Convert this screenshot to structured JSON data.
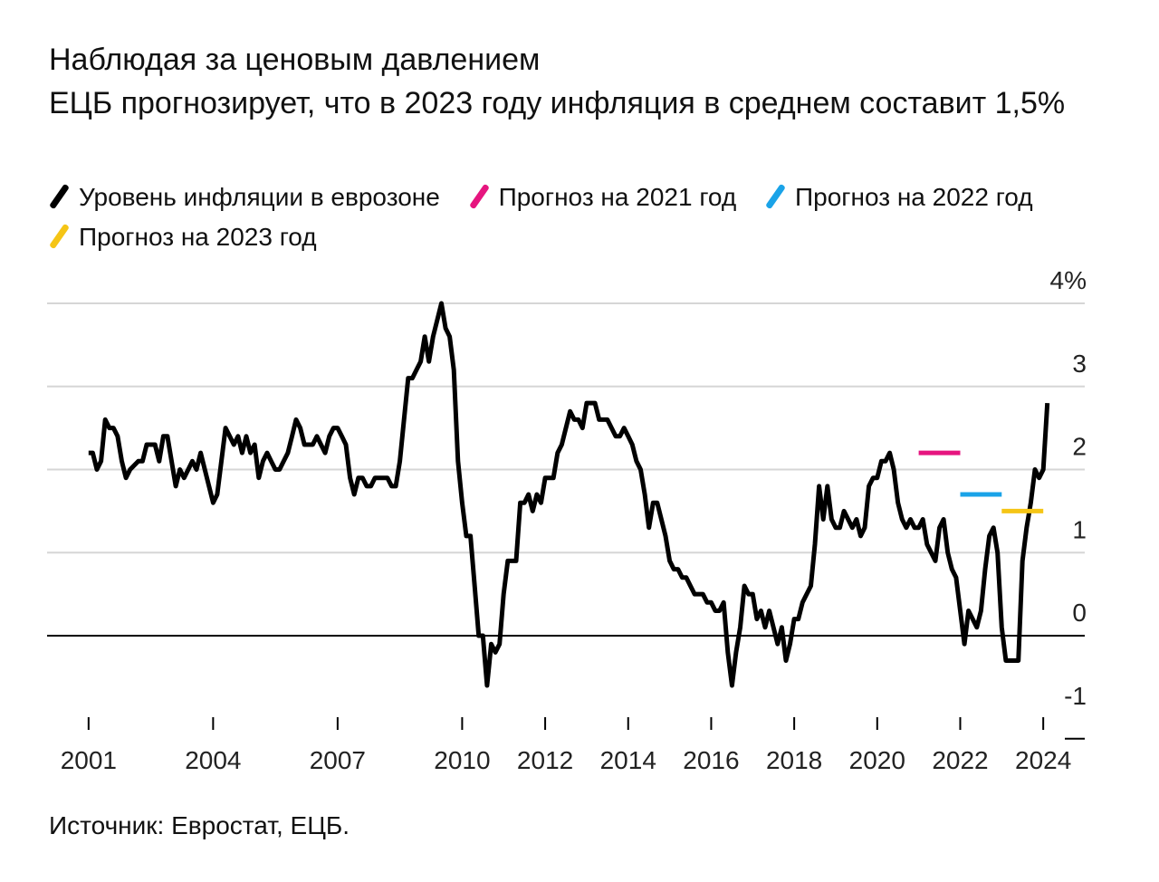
{
  "title": "Наблюдая за ценовым давлением",
  "subtitle": "ЕЦБ прогнозирует, что в 2023 году инфляция в среднем составит 1,5%",
  "source": "Источник: Евростат, ЕЦБ.",
  "legend": [
    {
      "label": "Уровень инфляции в еврозоне",
      "color": "#000000"
    },
    {
      "label": "Прогноз на 2021 год",
      "color": "#e6157f"
    },
    {
      "label": "Прогноз на 2022 год",
      "color": "#1aa3e8"
    },
    {
      "label": "Прогноз на 2023 год",
      "color": "#f5c516"
    }
  ],
  "chart_data": {
    "type": "line",
    "xlim": [
      2000,
      2025
    ],
    "ylim": [
      -1,
      4
    ],
    "y_ticks": [
      {
        "value": 4,
        "label": "4%"
      },
      {
        "value": 3,
        "label": "3"
      },
      {
        "value": 2,
        "label": "2"
      },
      {
        "value": 1,
        "label": "1"
      },
      {
        "value": 0,
        "label": "0"
      },
      {
        "value": -1,
        "label": "-1"
      }
    ],
    "x_ticks": [
      {
        "value": 2001,
        "label": "2001"
      },
      {
        "value": 2004,
        "label": "2004"
      },
      {
        "value": 2007,
        "label": "2007"
      },
      {
        "value": 2010,
        "label": "2010"
      },
      {
        "value": 2012,
        "label": "2012"
      },
      {
        "value": 2014,
        "label": "2014"
      },
      {
        "value": 2016,
        "label": "2016"
      },
      {
        "value": 2018,
        "label": "2018"
      },
      {
        "value": 2020,
        "label": "2020"
      },
      {
        "value": 2022,
        "label": "2022"
      },
      {
        "value": 2024,
        "label": "2024"
      }
    ],
    "grid": true,
    "legend_position": "top-left",
    "series": [
      {
        "name": "Уровень инфляции в еврозоне",
        "color": "#000000",
        "points": [
          [
            2001.0,
            2.2
          ],
          [
            2001.1,
            2.2
          ],
          [
            2001.2,
            2.0
          ],
          [
            2001.3,
            2.1
          ],
          [
            2001.4,
            2.6
          ],
          [
            2001.5,
            2.5
          ],
          [
            2001.6,
            2.5
          ],
          [
            2001.7,
            2.4
          ],
          [
            2001.8,
            2.1
          ],
          [
            2001.9,
            1.9
          ],
          [
            2002.0,
            2.0
          ],
          [
            2002.2,
            2.1
          ],
          [
            2002.3,
            2.1
          ],
          [
            2002.4,
            2.3
          ],
          [
            2002.5,
            2.3
          ],
          [
            2002.6,
            2.3
          ],
          [
            2002.7,
            2.1
          ],
          [
            2002.8,
            2.4
          ],
          [
            2002.9,
            2.4
          ],
          [
            2003.0,
            2.1
          ],
          [
            2003.1,
            1.8
          ],
          [
            2003.2,
            2.0
          ],
          [
            2003.3,
            1.9
          ],
          [
            2003.4,
            2.0
          ],
          [
            2003.5,
            2.1
          ],
          [
            2003.6,
            2.0
          ],
          [
            2003.7,
            2.2
          ],
          [
            2003.8,
            2.0
          ],
          [
            2003.9,
            1.8
          ],
          [
            2004.0,
            1.6
          ],
          [
            2004.1,
            1.7
          ],
          [
            2004.2,
            2.1
          ],
          [
            2004.3,
            2.5
          ],
          [
            2004.4,
            2.4
          ],
          [
            2004.5,
            2.3
          ],
          [
            2004.6,
            2.4
          ],
          [
            2004.7,
            2.2
          ],
          [
            2004.8,
            2.4
          ],
          [
            2004.9,
            2.2
          ],
          [
            2005.0,
            2.3
          ],
          [
            2005.1,
            1.9
          ],
          [
            2005.2,
            2.1
          ],
          [
            2005.3,
            2.2
          ],
          [
            2005.4,
            2.1
          ],
          [
            2005.5,
            2.0
          ],
          [
            2005.6,
            2.0
          ],
          [
            2005.7,
            2.1
          ],
          [
            2005.8,
            2.2
          ],
          [
            2005.9,
            2.4
          ],
          [
            2006.0,
            2.6
          ],
          [
            2006.1,
            2.5
          ],
          [
            2006.2,
            2.3
          ],
          [
            2006.3,
            2.3
          ],
          [
            2006.4,
            2.3
          ],
          [
            2006.5,
            2.4
          ],
          [
            2006.6,
            2.3
          ],
          [
            2006.7,
            2.2
          ],
          [
            2006.8,
            2.4
          ],
          [
            2006.9,
            2.5
          ],
          [
            2007.0,
            2.5
          ],
          [
            2007.1,
            2.4
          ],
          [
            2007.2,
            2.3
          ],
          [
            2007.3,
            1.9
          ],
          [
            2007.4,
            1.7
          ],
          [
            2007.5,
            1.9
          ],
          [
            2007.6,
            1.9
          ],
          [
            2007.7,
            1.8
          ],
          [
            2007.8,
            1.8
          ],
          [
            2007.9,
            1.9
          ],
          [
            2008.0,
            1.9
          ],
          [
            2008.1,
            1.9
          ],
          [
            2008.2,
            1.9
          ],
          [
            2008.3,
            1.8
          ],
          [
            2008.4,
            1.8
          ],
          [
            2008.5,
            2.1
          ],
          [
            2008.6,
            2.6
          ],
          [
            2008.7,
            3.1
          ],
          [
            2008.8,
            3.1
          ],
          [
            2008.9,
            3.2
          ],
          [
            2009.0,
            3.3
          ],
          [
            2009.1,
            3.6
          ],
          [
            2009.2,
            3.3
          ],
          [
            2009.3,
            3.6
          ],
          [
            2009.4,
            3.8
          ],
          [
            2009.5,
            4.0
          ],
          [
            2009.6,
            3.7
          ],
          [
            2009.7,
            3.6
          ],
          [
            2009.8,
            3.2
          ],
          [
            2009.9,
            2.1
          ],
          [
            2010.0,
            1.6
          ],
          [
            2010.1,
            1.2
          ],
          [
            2010.2,
            1.2
          ],
          [
            2010.3,
            0.6
          ],
          [
            2010.4,
            0.0
          ],
          [
            2010.5,
            0.0
          ],
          [
            2010.6,
            -0.6
          ],
          [
            2010.7,
            -0.1
          ],
          [
            2010.8,
            -0.2
          ],
          [
            2010.9,
            -0.1
          ],
          [
            2011.0,
            0.5
          ],
          [
            2011.1,
            0.9
          ],
          [
            2011.2,
            0.9
          ],
          [
            2011.3,
            0.9
          ],
          [
            2011.4,
            1.6
          ],
          [
            2011.5,
            1.6
          ],
          [
            2011.6,
            1.7
          ],
          [
            2011.7,
            1.5
          ],
          [
            2011.8,
            1.7
          ],
          [
            2011.9,
            1.6
          ],
          [
            2012.0,
            1.9
          ],
          [
            2012.1,
            1.9
          ],
          [
            2012.2,
            1.9
          ],
          [
            2012.3,
            2.2
          ],
          [
            2012.4,
            2.3
          ],
          [
            2012.5,
            2.5
          ],
          [
            2012.6,
            2.7
          ],
          [
            2012.7,
            2.6
          ],
          [
            2012.8,
            2.6
          ],
          [
            2012.9,
            2.5
          ],
          [
            2013.0,
            2.8
          ],
          [
            2013.1,
            2.8
          ],
          [
            2013.2,
            2.8
          ],
          [
            2013.3,
            2.6
          ],
          [
            2013.4,
            2.6
          ],
          [
            2013.5,
            2.6
          ],
          [
            2013.6,
            2.5
          ],
          [
            2013.7,
            2.4
          ],
          [
            2013.8,
            2.4
          ],
          [
            2013.9,
            2.5
          ],
          [
            2014.0,
            2.4
          ],
          [
            2014.1,
            2.3
          ],
          [
            2014.2,
            2.1
          ],
          [
            2014.3,
            2.0
          ],
          [
            2014.4,
            1.7
          ],
          [
            2014.5,
            1.3
          ],
          [
            2014.6,
            1.6
          ],
          [
            2014.7,
            1.6
          ],
          [
            2014.8,
            1.4
          ],
          [
            2014.9,
            1.2
          ],
          [
            2015.0,
            0.9
          ],
          [
            2015.1,
            0.8
          ],
          [
            2015.2,
            0.8
          ],
          [
            2015.3,
            0.7
          ],
          [
            2015.4,
            0.7
          ],
          [
            2015.5,
            0.6
          ],
          [
            2015.6,
            0.5
          ],
          [
            2015.7,
            0.5
          ],
          [
            2015.8,
            0.5
          ],
          [
            2015.9,
            0.4
          ],
          [
            2016.0,
            0.4
          ],
          [
            2016.1,
            0.3
          ],
          [
            2016.2,
            0.3
          ],
          [
            2016.3,
            0.4
          ],
          [
            2016.4,
            -0.2
          ],
          [
            2016.5,
            -0.6
          ],
          [
            2016.6,
            -0.2
          ],
          [
            2016.7,
            0.1
          ],
          [
            2016.8,
            0.6
          ],
          [
            2016.9,
            0.5
          ],
          [
            2017.0,
            0.5
          ],
          [
            2017.1,
            0.2
          ],
          [
            2017.2,
            0.3
          ],
          [
            2017.3,
            0.1
          ],
          [
            2017.4,
            0.3
          ],
          [
            2017.5,
            0.1
          ],
          [
            2017.6,
            -0.1
          ],
          [
            2017.7,
            0.1
          ],
          [
            2017.8,
            -0.3
          ],
          [
            2017.9,
            -0.1
          ],
          [
            2018.0,
            0.2
          ],
          [
            2018.1,
            0.2
          ],
          [
            2018.2,
            0.4
          ],
          [
            2018.3,
            0.5
          ],
          [
            2018.4,
            0.6
          ],
          [
            2018.5,
            1.1
          ],
          [
            2018.6,
            1.8
          ],
          [
            2018.7,
            1.4
          ],
          [
            2018.8,
            1.8
          ],
          [
            2018.9,
            1.4
          ],
          [
            2019.0,
            1.3
          ],
          [
            2019.1,
            1.3
          ],
          [
            2019.2,
            1.5
          ],
          [
            2019.3,
            1.4
          ],
          [
            2019.4,
            1.3
          ],
          [
            2019.5,
            1.4
          ],
          [
            2019.6,
            1.2
          ],
          [
            2019.7,
            1.3
          ],
          [
            2019.8,
            1.8
          ],
          [
            2019.9,
            1.9
          ],
          [
            2020.0,
            1.9
          ],
          [
            2020.1,
            2.1
          ],
          [
            2020.2,
            2.1
          ],
          [
            2020.3,
            2.2
          ],
          [
            2020.4,
            2.0
          ],
          [
            2020.5,
            1.6
          ],
          [
            2020.6,
            1.4
          ],
          [
            2020.7,
            1.3
          ],
          [
            2020.8,
            1.4
          ],
          [
            2020.9,
            1.3
          ],
          [
            2021.0,
            1.3
          ],
          [
            2021.1,
            1.4
          ],
          [
            2021.2,
            1.1
          ],
          [
            2021.3,
            1.0
          ],
          [
            2021.4,
            0.9
          ],
          [
            2021.5,
            1.3
          ],
          [
            2021.6,
            1.4
          ],
          [
            2021.7,
            1.0
          ],
          [
            2021.8,
            0.8
          ],
          [
            2021.9,
            0.7
          ],
          [
            2022.0,
            0.3
          ],
          [
            2022.1,
            -0.1
          ],
          [
            2022.2,
            0.3
          ],
          [
            2022.3,
            0.2
          ],
          [
            2022.4,
            0.1
          ],
          [
            2022.5,
            0.3
          ],
          [
            2022.6,
            0.8
          ],
          [
            2022.7,
            1.2
          ],
          [
            2022.8,
            1.3
          ],
          [
            2022.9,
            1.0
          ],
          [
            2023.0,
            0.1
          ],
          [
            2023.1,
            -0.3
          ],
          [
            2023.2,
            -0.3
          ],
          [
            2023.3,
            -0.3
          ],
          [
            2023.4,
            -0.3
          ],
          [
            2023.5,
            0.9
          ],
          [
            2023.6,
            1.3
          ],
          [
            2023.7,
            1.6
          ],
          [
            2023.8,
            2.0
          ],
          [
            2023.9,
            1.9
          ],
          [
            2024.0,
            2.0
          ],
          [
            2024.1,
            2.8
          ]
        ]
      },
      {
        "name": "Прогноз на 2021 год",
        "color": "#e6157f",
        "points": [
          [
            2021.0,
            2.2
          ],
          [
            2022.0,
            2.2
          ]
        ]
      },
      {
        "name": "Прогноз на 2022 год",
        "color": "#1aa3e8",
        "points": [
          [
            2022.0,
            1.7
          ],
          [
            2023.0,
            1.7
          ]
        ]
      },
      {
        "name": "Прогноз на 2023 год",
        "color": "#f5c516",
        "points": [
          [
            2023.0,
            1.5
          ],
          [
            2024.0,
            1.5
          ]
        ]
      }
    ]
  }
}
